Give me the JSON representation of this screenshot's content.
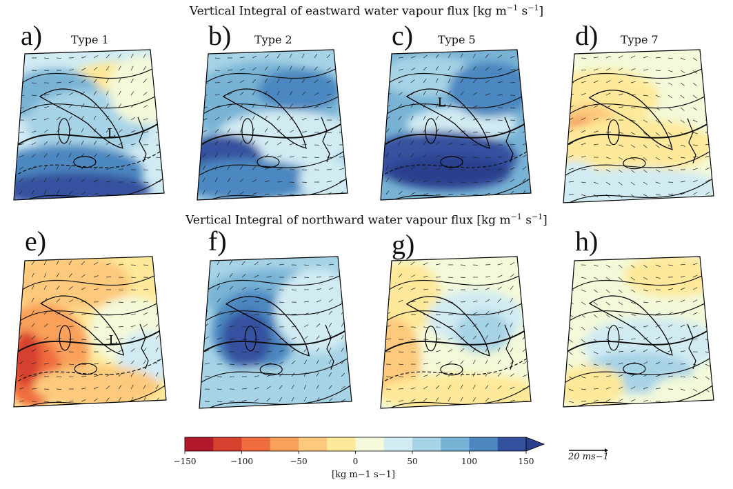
{
  "titles": {
    "row1": "Vertical Integral of eastward water vapour flux [kg m",
    "row1_exp1": "−1",
    "row1_mid": " s",
    "row1_exp2": "−1",
    "row1_end": "]",
    "row2": "Vertical Integral of northward water vapour flux [kg m",
    "row2_exp1": "−1",
    "row2_mid": " s",
    "row2_exp2": "−1",
    "row2_end": "]"
  },
  "panels": [
    {
      "letter": "a)",
      "type": "Type 1",
      "field": "east_t1"
    },
    {
      "letter": "b)",
      "type": "Type 2",
      "field": "east_t2"
    },
    {
      "letter": "c)",
      "type": "Type 5",
      "field": "east_t5"
    },
    {
      "letter": "d)",
      "type": "Type 7",
      "field": "east_t7"
    },
    {
      "letter": "e)",
      "type": "",
      "field": "north_t1"
    },
    {
      "letter": "f)",
      "type": "",
      "field": "north_t2"
    },
    {
      "letter": "g)",
      "type": "",
      "field": "north_t5"
    },
    {
      "letter": "h)",
      "type": "",
      "field": "north_t7"
    }
  ],
  "colorbar": {
    "levels": [
      -150,
      -125,
      -100,
      -75,
      -50,
      -25,
      0,
      25,
      50,
      75,
      100,
      125,
      150
    ],
    "colors": [
      "#b2182b",
      "#d6402f",
      "#ef6c3e",
      "#f9a05a",
      "#fdc97c",
      "#fee99a",
      "#f3f9d9",
      "#d1ebf3",
      "#a7d3e6",
      "#78b3d5",
      "#4c87c0",
      "#34519f"
    ],
    "extend_color": "#2b3f8e",
    "tick_labels": [
      "−150",
      "−100",
      "−50",
      "0",
      "50",
      "100",
      "150"
    ],
    "tick_values": [
      -150,
      -100,
      -50,
      0,
      50,
      100,
      150
    ],
    "label": "[kg m−1 s−1]"
  },
  "scale_vector": {
    "label": "20 ms−1"
  },
  "icons": {
    "low_pressure": "L"
  }
}
